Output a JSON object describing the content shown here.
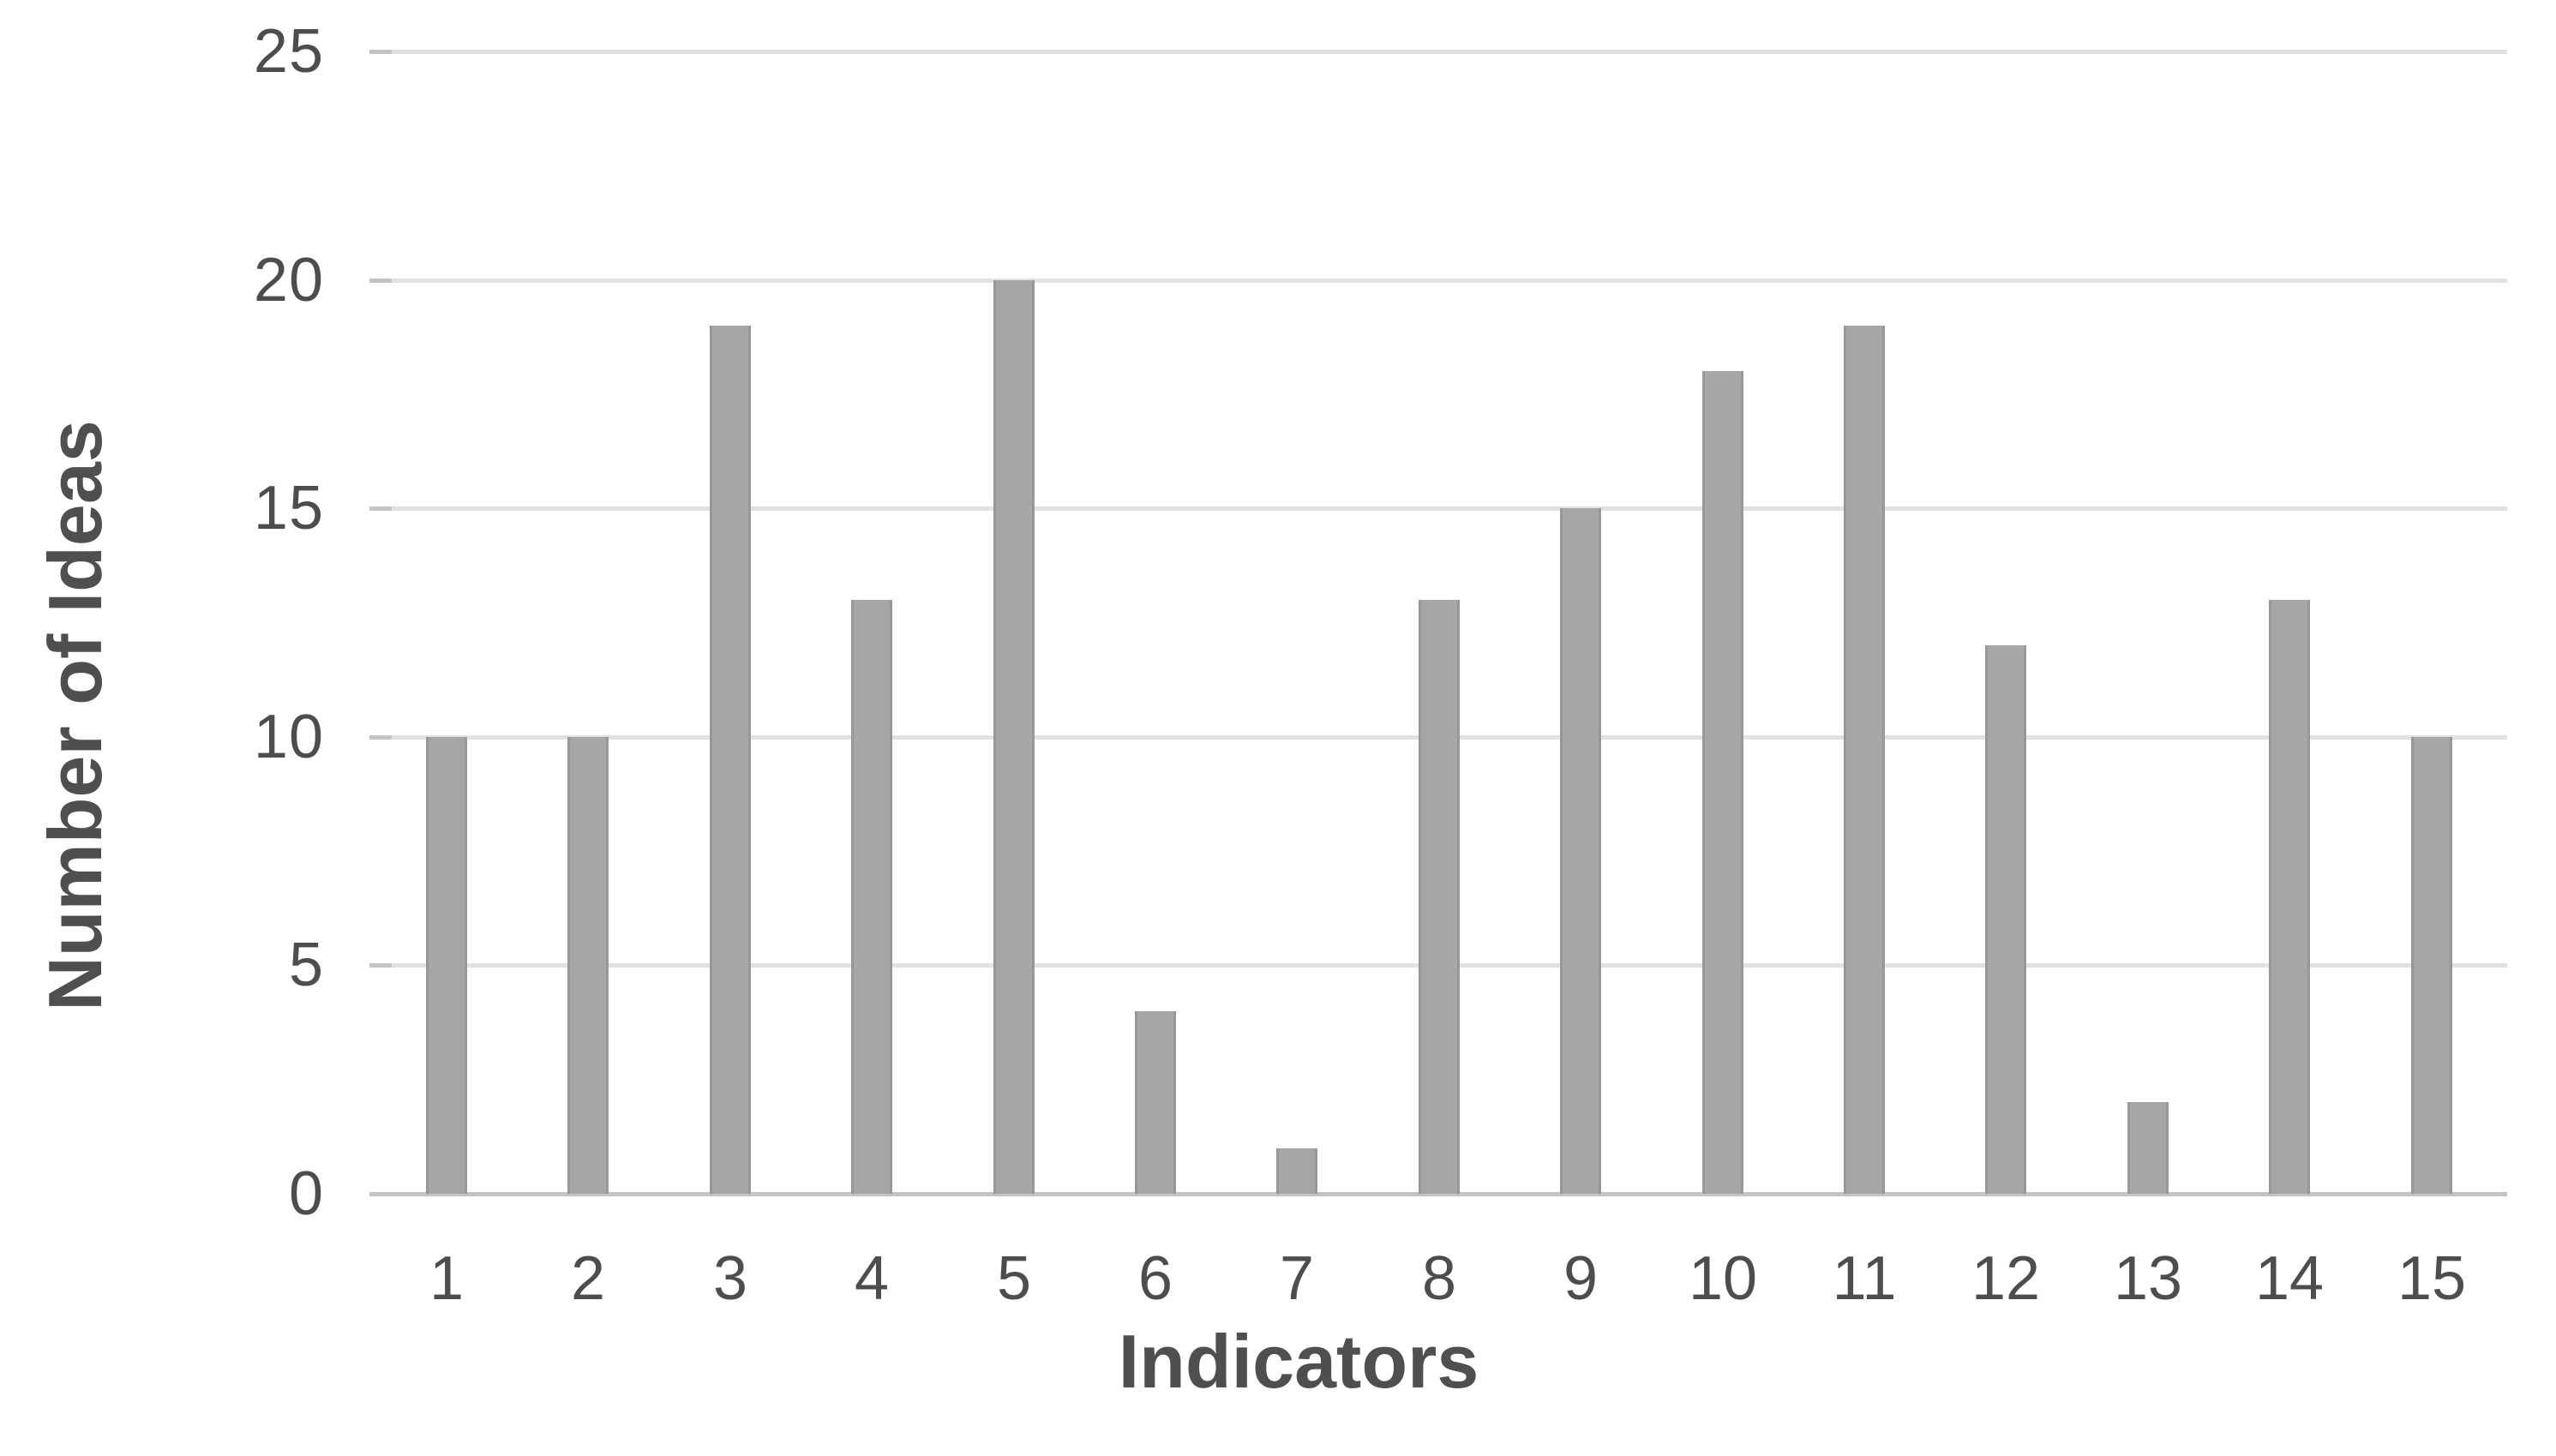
{
  "chart_data": {
    "type": "bar",
    "categories": [
      "1",
      "2",
      "3",
      "4",
      "5",
      "6",
      "7",
      "8",
      "9",
      "10",
      "11",
      "12",
      "13",
      "14",
      "15"
    ],
    "values": [
      10,
      10,
      19,
      13,
      20,
      4,
      1,
      13,
      15,
      18,
      19,
      12,
      2,
      13,
      10
    ],
    "title": "",
    "xlabel": "Indicators",
    "ylabel": "Number of Ideas",
    "yticks": [
      0,
      5,
      10,
      15,
      20,
      25
    ],
    "ylim": [
      0,
      25
    ],
    "grid": "horizontal",
    "legend": "none",
    "colors": {
      "bar_fill": "#a6a6a6",
      "bar_edge": "#989898",
      "gridline": "#e1e1e1",
      "axis_line": "#c3c3c3",
      "tick_mark": "#c3c3c3",
      "tick_label": "#4d4d4d",
      "axis_title": "#4f4f4f",
      "background": "#ffffff"
    }
  }
}
